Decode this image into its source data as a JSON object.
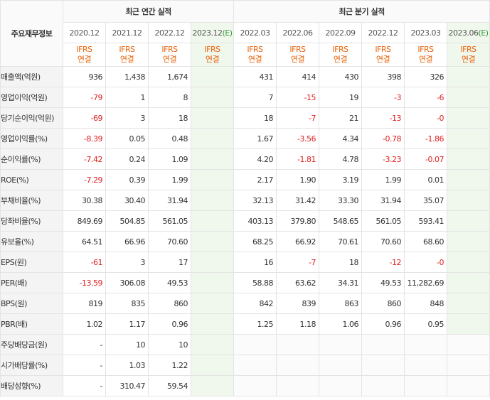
{
  "header": {
    "row_label": "주요재무정보",
    "annual_group": "최근 연간 실적",
    "quarter_group": "최근 분기 실적",
    "annual_periods": [
      "2020.12",
      "2021.12",
      "2022.12",
      "2023.12"
    ],
    "quarter_periods": [
      "2022.03",
      "2022.06",
      "2022.09",
      "2022.12",
      "2023.03",
      "2023.06"
    ],
    "estimate_mark": "(E)",
    "basis_top": "IFRS",
    "basis_bottom": "연결"
  },
  "colors": {
    "negative": "#e02020",
    "basis": "#e9650c",
    "estimate_bg": "#f0f7ec",
    "estimate_mark": "#3d9a3d"
  },
  "rows": [
    {
      "label": "매출액(억원)",
      "annual": [
        "936",
        "1,438",
        "1,674",
        ""
      ],
      "quarter": [
        "431",
        "414",
        "430",
        "398",
        "326",
        ""
      ]
    },
    {
      "label": "영업이익(억원)",
      "annual": [
        "-79",
        "1",
        "8",
        ""
      ],
      "quarter": [
        "7",
        "-15",
        "19",
        "-3",
        "-6",
        ""
      ]
    },
    {
      "label": "당기순이익(억원)",
      "annual": [
        "-69",
        "3",
        "18",
        ""
      ],
      "quarter": [
        "18",
        "-7",
        "21",
        "-13",
        "-0",
        ""
      ]
    },
    {
      "label": "영업이익률(%)",
      "annual": [
        "-8.39",
        "0.05",
        "0.48",
        ""
      ],
      "quarter": [
        "1.67",
        "-3.56",
        "4.34",
        "-0.78",
        "-1.86",
        ""
      ]
    },
    {
      "label": "순이익률(%)",
      "annual": [
        "-7.42",
        "0.24",
        "1.09",
        ""
      ],
      "quarter": [
        "4.20",
        "-1.81",
        "4.78",
        "-3.23",
        "-0.07",
        ""
      ]
    },
    {
      "label": "ROE(%)",
      "annual": [
        "-7.29",
        "0.39",
        "1.99",
        ""
      ],
      "quarter": [
        "2.17",
        "1.90",
        "3.19",
        "1.99",
        "0.01",
        ""
      ]
    },
    {
      "label": "부채비율(%)",
      "annual": [
        "30.38",
        "30.40",
        "31.94",
        ""
      ],
      "quarter": [
        "32.13",
        "31.42",
        "33.30",
        "31.94",
        "35.07",
        ""
      ]
    },
    {
      "label": "당좌비율(%)",
      "annual": [
        "849.69",
        "504.85",
        "561.05",
        ""
      ],
      "quarter": [
        "403.13",
        "379.80",
        "548.65",
        "561.05",
        "593.41",
        ""
      ]
    },
    {
      "label": "유보율(%)",
      "annual": [
        "64.51",
        "66.96",
        "70.60",
        ""
      ],
      "quarter": [
        "68.25",
        "66.92",
        "70.61",
        "70.60",
        "68.60",
        ""
      ]
    },
    {
      "label": "EPS(원)",
      "annual": [
        "-61",
        "3",
        "17",
        ""
      ],
      "quarter": [
        "16",
        "-7",
        "18",
        "-12",
        "-0",
        ""
      ]
    },
    {
      "label": "PER(배)",
      "annual": [
        "-13.59",
        "306.08",
        "49.53",
        ""
      ],
      "quarter": [
        "58.88",
        "63.62",
        "34.31",
        "49.53",
        "11,282.69",
        ""
      ]
    },
    {
      "label": "BPS(원)",
      "annual": [
        "819",
        "835",
        "860",
        ""
      ],
      "quarter": [
        "842",
        "839",
        "863",
        "860",
        "848",
        ""
      ]
    },
    {
      "label": "PBR(배)",
      "annual": [
        "1.02",
        "1.17",
        "0.96",
        ""
      ],
      "quarter": [
        "1.25",
        "1.18",
        "1.06",
        "0.96",
        "0.95",
        ""
      ]
    },
    {
      "label": "주당배당금(원)",
      "annual": [
        "-",
        "10",
        "10",
        ""
      ],
      "quarter": [
        "",
        "",
        "",
        "",
        "",
        ""
      ]
    },
    {
      "label": "시가배당률(%)",
      "annual": [
        "-",
        "1.03",
        "1.22",
        ""
      ],
      "quarter": [
        "",
        "",
        "",
        "",
        "",
        ""
      ]
    },
    {
      "label": "배당성향(%)",
      "annual": [
        "-",
        "310.47",
        "59.54",
        ""
      ],
      "quarter": [
        "",
        "",
        "",
        "",
        "",
        ""
      ]
    }
  ]
}
